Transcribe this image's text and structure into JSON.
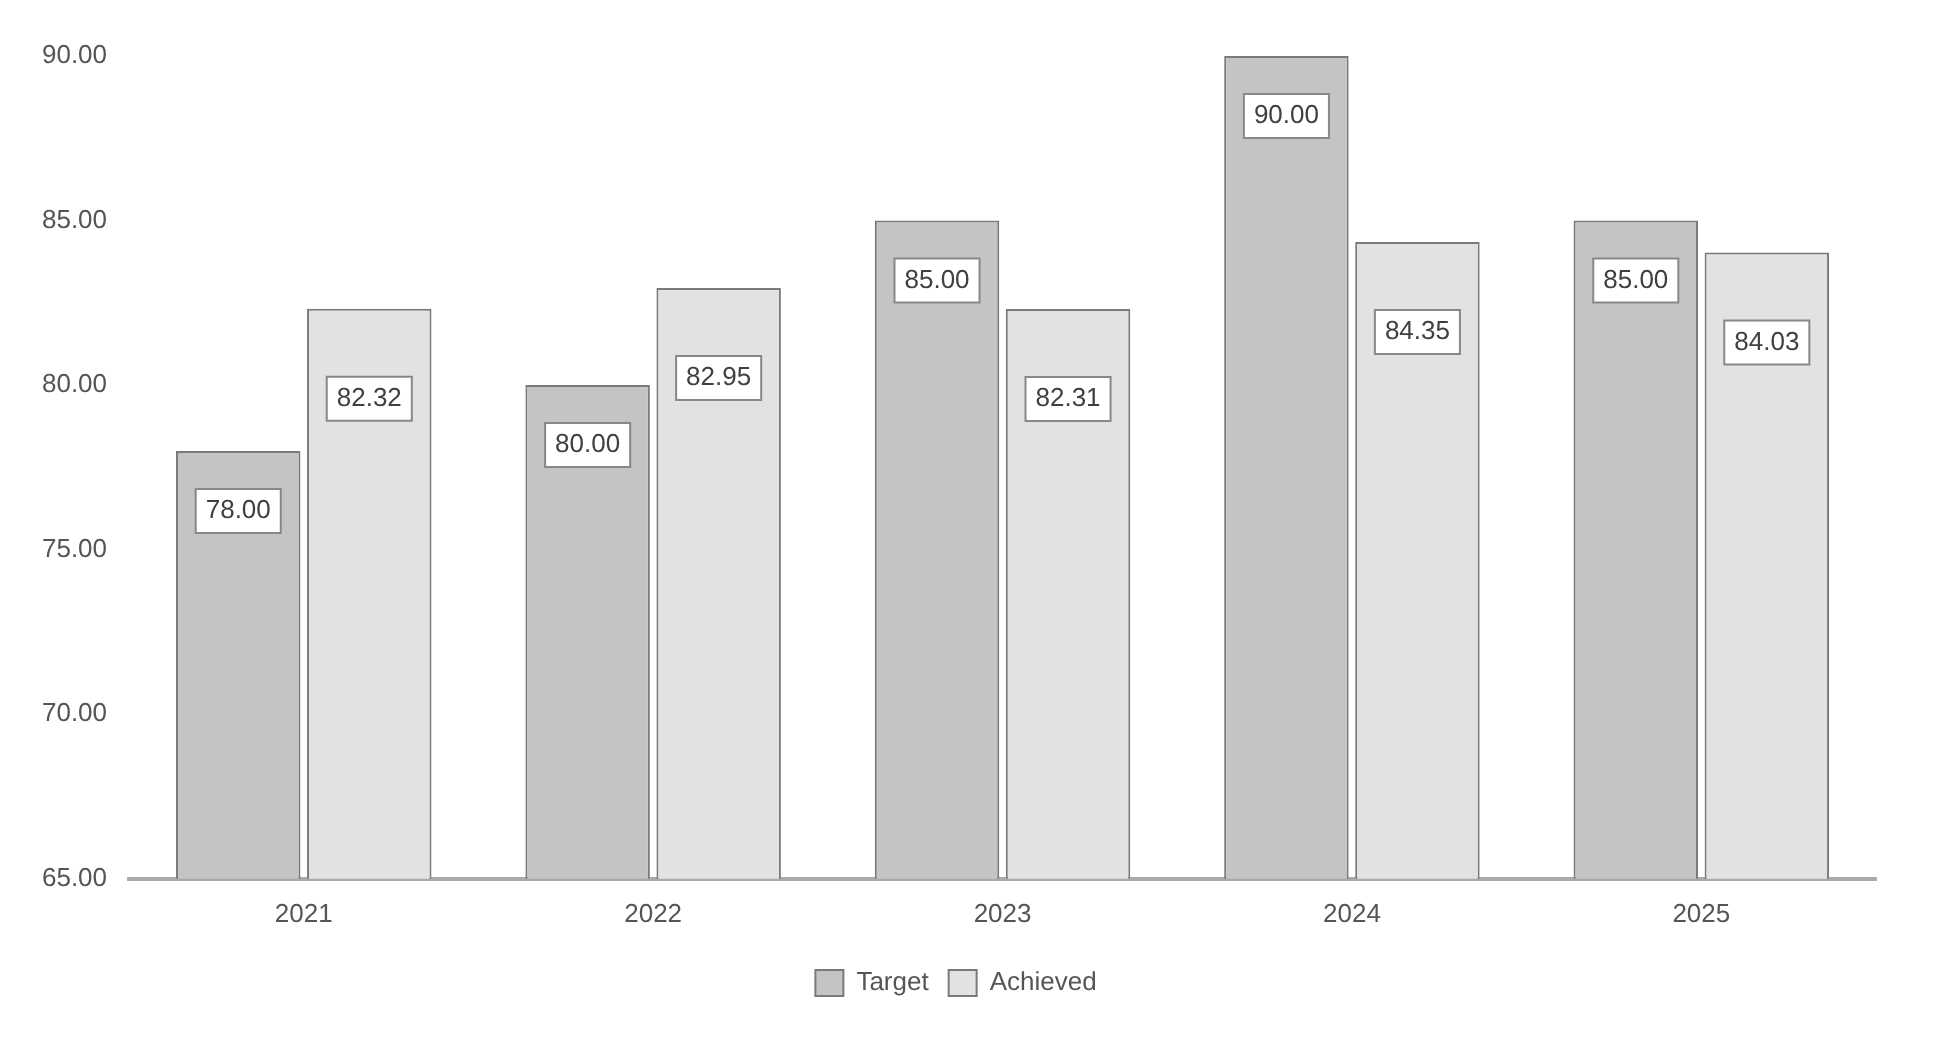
{
  "chart_data": {
    "type": "bar",
    "categories": [
      "2021",
      "2022",
      "2023",
      "2024",
      "2025"
    ],
    "series": [
      {
        "name": "Target",
        "color": "#c4c4c4",
        "values": [
          78,
          80,
          85,
          90,
          85
        ],
        "value_labels": [
          "78.00",
          "80.00",
          "85.00",
          "90.00",
          "85.00"
        ]
      },
      {
        "name": "Achieved",
        "color": "#e2e2e2",
        "values": [
          82.32,
          82.95,
          82.31,
          84.35,
          84.03
        ],
        "value_labels": [
          "82.32",
          "82.95",
          "82.31",
          "84.35",
          "84.03"
        ]
      }
    ],
    "ylim": [
      65,
      90
    ],
    "yticks": [
      {
        "value": 65,
        "label": "65.00"
      },
      {
        "value": 70,
        "label": "70.00"
      },
      {
        "value": 75,
        "label": "75.00"
      },
      {
        "value": 80,
        "label": "80.00"
      },
      {
        "value": 85,
        "label": "85.00"
      },
      {
        "value": 90,
        "label": "90.00"
      }
    ],
    "grid": false,
    "legend": "bottom"
  }
}
